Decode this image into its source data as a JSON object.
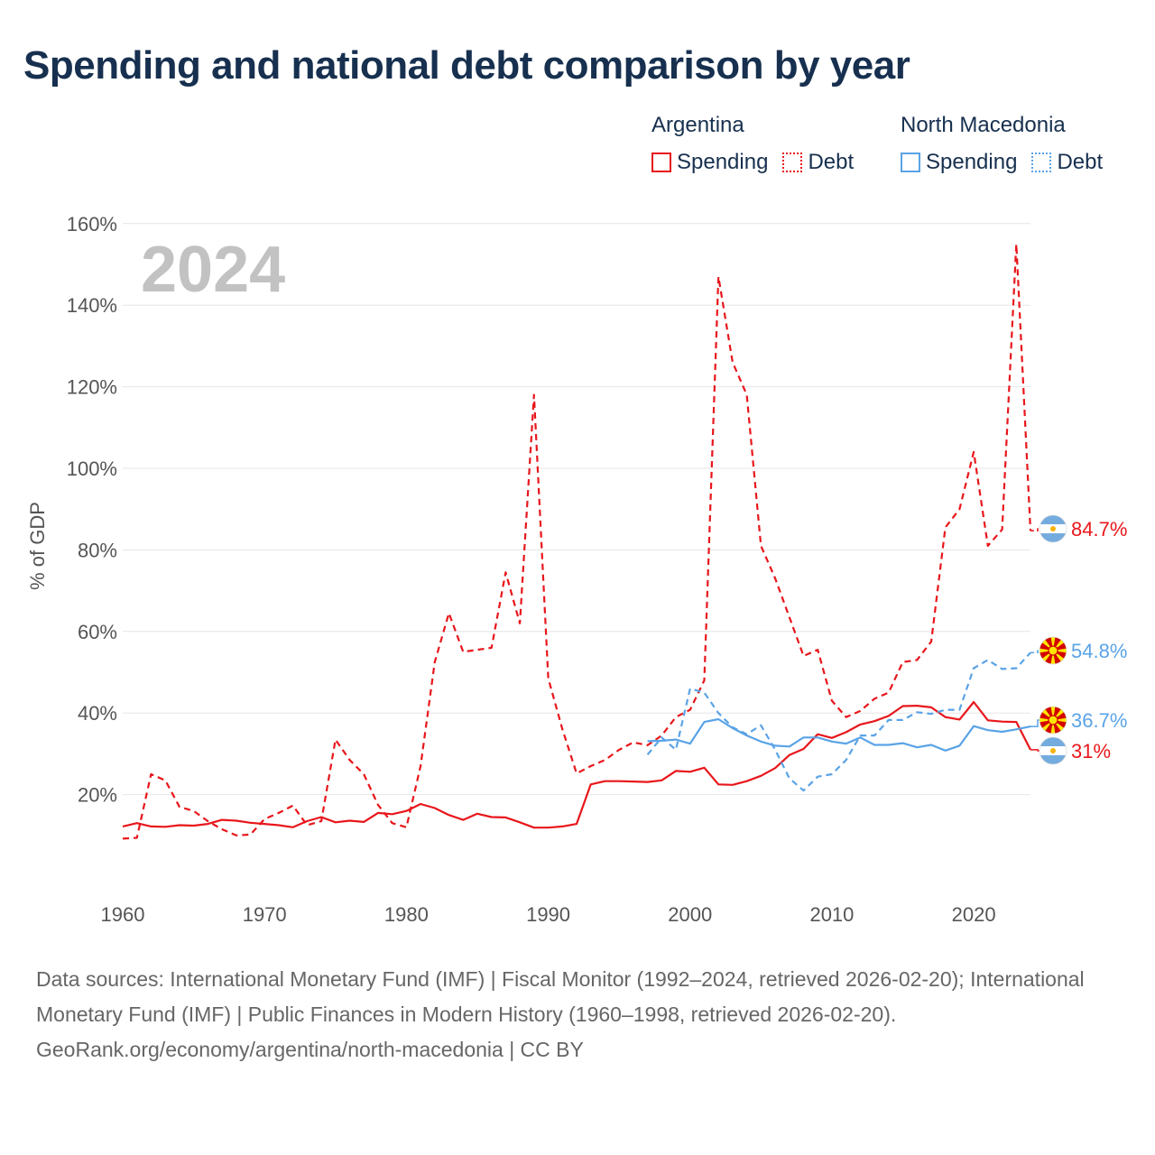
{
  "title": "Spending and national debt comparison by year",
  "legend": {
    "groups": [
      {
        "name": "Argentina",
        "color": "#e8161b",
        "items": [
          {
            "label": "Spending",
            "style": "solid"
          },
          {
            "label": "Debt",
            "style": "dotted"
          }
        ]
      },
      {
        "name": "North Macedonia",
        "color": "#5aa3e6",
        "items": [
          {
            "label": "Spending",
            "style": "solid"
          },
          {
            "label": "Debt",
            "style": "dotted"
          }
        ]
      }
    ]
  },
  "footer": {
    "sources": "Data sources: International Monetary Fund (IMF) | Fiscal Monitor (1992–2024, retrieved 2026-02-20); International Monetary Fund (IMF) | Public Finances in Modern History (1960–1998, retrieved 2026-02-20).",
    "credit": "GeoRank.org/economy/argentina/north-macedonia | CC BY"
  },
  "chart_data": {
    "type": "line",
    "title": "Spending and national debt comparison by year",
    "year_label": "2024",
    "ylabel": "% of GDP",
    "xlabel": "",
    "xlim": [
      1960,
      2024
    ],
    "ylim": [
      0,
      160
    ],
    "y_ticks": [
      20,
      40,
      60,
      80,
      100,
      120,
      140,
      160
    ],
    "y_tick_labels": [
      "20%",
      "40%",
      "60%",
      "80%",
      "100%",
      "120%",
      "140%",
      "160%"
    ],
    "x_ticks": [
      1960,
      1970,
      1980,
      1990,
      2000,
      2010,
      2020
    ],
    "x_tick_labels": [
      "1960",
      "1970",
      "1980",
      "1990",
      "2000",
      "2010",
      "2020"
    ],
    "grid": true,
    "series": [
      {
        "name": "Argentina Debt",
        "country": "Argentina",
        "kind": "Debt",
        "color": "#e8161b",
        "dash": "dashed",
        "end_label": "84.7%",
        "flag": "argentina",
        "x": [
          1960,
          1961,
          1962,
          1963,
          1964,
          1965,
          1966,
          1967,
          1968,
          1969,
          1970,
          1971,
          1972,
          1973,
          1974,
          1975,
          1976,
          1977,
          1978,
          1979,
          1980,
          1981,
          1982,
          1983,
          1984,
          1985,
          1986,
          1987,
          1988,
          1989,
          1990,
          1991,
          1992,
          1993,
          1994,
          1995,
          1996,
          1997,
          1998,
          1999,
          2000,
          2001,
          2002,
          2003,
          2004,
          2005,
          2006,
          2007,
          2008,
          2009,
          2010,
          2011,
          2012,
          2013,
          2014,
          2015,
          2016,
          2017,
          2018,
          2019,
          2020,
          2021,
          2022,
          2023,
          2024
        ],
        "y": [
          9.2,
          9.4,
          25,
          23.5,
          17,
          16,
          13.5,
          11.5,
          10,
          10.2,
          14,
          15.5,
          17.3,
          12.5,
          13.5,
          33.5,
          28.5,
          25,
          17.5,
          13,
          12,
          27,
          52.5,
          64.5,
          55,
          55.5,
          56,
          74.5,
          62,
          118,
          48.5,
          36,
          25.2,
          27,
          28.5,
          31,
          32.8,
          32.1,
          34.5,
          39,
          40.8,
          48,
          147,
          126,
          118,
          81,
          73,
          63.5,
          54,
          55.5,
          43,
          39,
          40.5,
          43.5,
          45,
          52.5,
          53,
          57.5,
          85.5,
          90,
          104,
          81,
          85,
          155,
          84.7
        ]
      },
      {
        "name": "Argentina Spending",
        "country": "Argentina",
        "kind": "Spending",
        "color": "#e8161b",
        "dash": "solid",
        "end_label": "31%",
        "flag": "argentina",
        "x": [
          1960,
          1961,
          1962,
          1963,
          1964,
          1965,
          1966,
          1967,
          1968,
          1969,
          1970,
          1971,
          1972,
          1973,
          1974,
          1975,
          1976,
          1977,
          1978,
          1979,
          1980,
          1981,
          1982,
          1983,
          1984,
          1985,
          1986,
          1987,
          1988,
          1989,
          1990,
          1991,
          1992,
          1993,
          1994,
          1995,
          1996,
          1997,
          1998,
          1999,
          2000,
          2001,
          2002,
          2003,
          2004,
          2005,
          2006,
          2007,
          2008,
          2009,
          2010,
          2011,
          2012,
          2013,
          2014,
          2015,
          2016,
          2017,
          2018,
          2019,
          2020,
          2021,
          2022,
          2023,
          2024
        ],
        "y": [
          12.2,
          13,
          12.2,
          12.1,
          12.5,
          12.4,
          12.8,
          13.8,
          13.6,
          13.1,
          12.8,
          12.5,
          12,
          13.5,
          14.5,
          13.2,
          13.6,
          13.3,
          15.5,
          15.2,
          16,
          17.7,
          16.7,
          15,
          13.8,
          15.3,
          14.5,
          14.4,
          13.2,
          11.9,
          11.9,
          12.2,
          12.8,
          22.5,
          23.3,
          23.3,
          23.2,
          23.1,
          23.5,
          25.8,
          25.6,
          26.6,
          22.5,
          22.4,
          23.3,
          24.6,
          26.5,
          29.7,
          31.2,
          34.8,
          33.9,
          35.3,
          37.2,
          38,
          39.3,
          41.7,
          41.8,
          41.4,
          39,
          38.4,
          42.7,
          38.2,
          37.9,
          37.8,
          31
        ]
      },
      {
        "name": "North Macedonia Debt",
        "country": "North Macedonia",
        "kind": "Debt",
        "color": "#5aa3e6",
        "dash": "dashed",
        "end_label": "54.8%",
        "flag": "north-macedonia",
        "x": [
          1997,
          1998,
          1999,
          2000,
          2001,
          2002,
          2003,
          2004,
          2005,
          2006,
          2007,
          2008,
          2009,
          2010,
          2011,
          2012,
          2013,
          2014,
          2015,
          2016,
          2017,
          2018,
          2019,
          2020,
          2021,
          2022,
          2023,
          2024
        ],
        "y": [
          29.8,
          34,
          31,
          46,
          45,
          40,
          36.5,
          34.8,
          37,
          31,
          24,
          21,
          24.4,
          25,
          28.5,
          34.5,
          34.5,
          38.3,
          38.3,
          40.2,
          39.8,
          40.8,
          40.8,
          51,
          53,
          50.8,
          51,
          54.8
        ]
      },
      {
        "name": "North Macedonia Spending",
        "country": "North Macedonia",
        "kind": "Spending",
        "color": "#5aa3e6",
        "dash": "solid",
        "end_label": "36.7%",
        "flag": "north-macedonia",
        "x": [
          1997,
          1998,
          1999,
          2000,
          2001,
          2002,
          2003,
          2004,
          2005,
          2006,
          2007,
          2008,
          2009,
          2010,
          2011,
          2012,
          2013,
          2014,
          2015,
          2016,
          2017,
          2018,
          2019,
          2020,
          2021,
          2022,
          2023,
          2024
        ],
        "y": [
          33.1,
          33.2,
          33.5,
          32.5,
          37.8,
          38.5,
          36.3,
          34.5,
          33,
          32,
          31.8,
          34,
          34,
          33,
          32.5,
          34,
          32.2,
          32.2,
          32.6,
          31.6,
          32.2,
          30.8,
          32,
          36.8,
          35.8,
          35.4,
          36,
          36.7
        ]
      }
    ]
  }
}
